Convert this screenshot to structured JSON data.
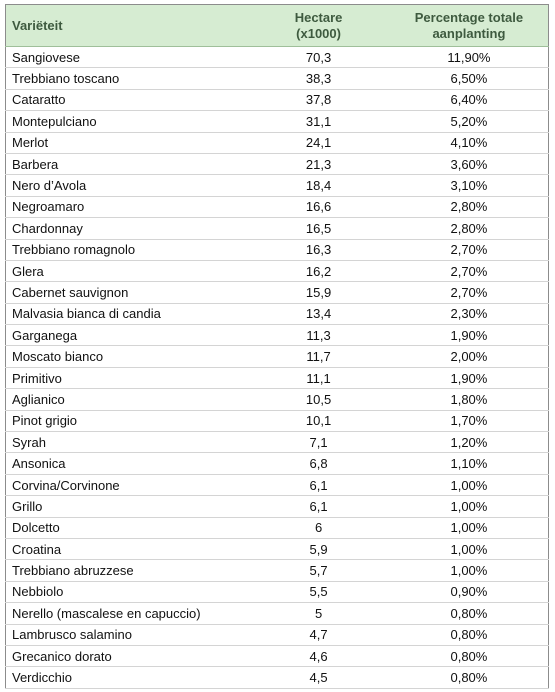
{
  "table": {
    "header": [
      "Variëteit",
      "Hectare (x1000)",
      "Percentage totale aanplanting"
    ],
    "rows": [
      [
        "Sangiovese",
        "70,3",
        "11,90%"
      ],
      [
        "Trebbiano toscano",
        "38,3",
        "6,50%"
      ],
      [
        "Cataratto",
        "37,8",
        "6,40%"
      ],
      [
        "Montepulciano",
        "31,1",
        "5,20%"
      ],
      [
        "Merlot",
        "24,1",
        "4,10%"
      ],
      [
        "Barbera",
        "21,3",
        "3,60%"
      ],
      [
        "Nero d’Avola",
        "18,4",
        "3,10%"
      ],
      [
        "Negroamaro",
        "16,6",
        "2,80%"
      ],
      [
        "Chardonnay",
        "16,5",
        "2,80%"
      ],
      [
        "Trebbiano romagnolo",
        "16,3",
        "2,70%"
      ],
      [
        "Glera",
        "16,2",
        "2,70%"
      ],
      [
        "Cabernet sauvignon",
        "15,9",
        "2,70%"
      ],
      [
        "Malvasia bianca di candia",
        "13,4",
        "2,30%"
      ],
      [
        "Garganega",
        "11,3",
        "1,90%"
      ],
      [
        "Moscato bianco",
        "11,7",
        "2,00%"
      ],
      [
        "Primitivo",
        "11,1",
        "1,90%"
      ],
      [
        "Aglianico",
        "10,5",
        "1,80%"
      ],
      [
        "Pinot grigio",
        "10,1",
        "1,70%"
      ],
      [
        "Syrah",
        "7,1",
        "1,20%"
      ],
      [
        "Ansonica",
        "6,8",
        "1,10%"
      ],
      [
        "Corvina/Corvinone",
        "6,1",
        "1,00%"
      ],
      [
        "Grillo",
        "6,1",
        "1,00%"
      ],
      [
        "Dolcetto",
        "6",
        "1,00%"
      ],
      [
        "Croatina",
        "5,9",
        "1,00%"
      ],
      [
        "Trebbiano abruzzese",
        "5,7",
        "1,00%"
      ],
      [
        "Nebbiolo",
        "5,5",
        "0,90%"
      ],
      [
        "Nerello (mascalese en capuccio)",
        "5",
        "0,80%"
      ],
      [
        "Lambrusco salamino",
        "4,7",
        "0,80%"
      ],
      [
        "Grecanico dorato",
        "4,6",
        "0,80%"
      ],
      [
        "Verdicchio",
        "4,5",
        "0,80%"
      ]
    ]
  }
}
